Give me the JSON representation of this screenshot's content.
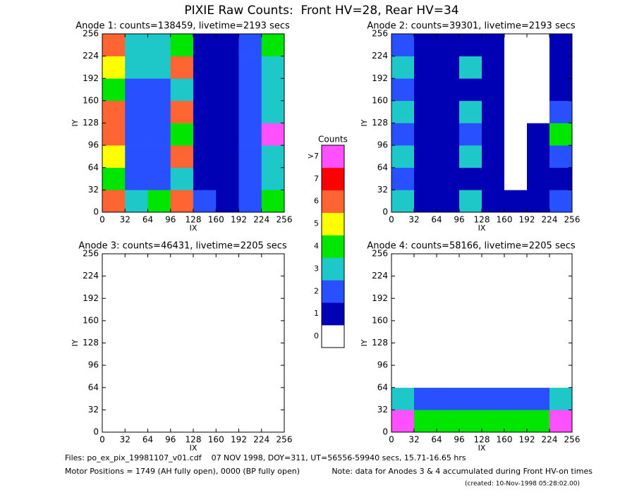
{
  "title": "PIXIE Raw Counts:  Front HV=28, Rear HV=34",
  "chart_data": [
    {
      "type": "heatmap",
      "title": "Anode 1: counts=138459, livetime=2193 secs",
      "xlabel": "IX",
      "ylabel": "IY",
      "xlim": [
        0,
        256
      ],
      "ylim": [
        0,
        256
      ],
      "xticks": [
        0,
        32,
        64,
        96,
        128,
        160,
        192,
        224,
        256
      ],
      "yticks": [
        0,
        32,
        64,
        96,
        128,
        160,
        192,
        224,
        256
      ],
      "z": [
        [
          6,
          3,
          4,
          6,
          2,
          1,
          2,
          4
        ],
        [
          4,
          2,
          2,
          3,
          1,
          1,
          2,
          3
        ],
        [
          5,
          2,
          2,
          6,
          1,
          1,
          2,
          3
        ],
        [
          6,
          2,
          2,
          4,
          1,
          1,
          2,
          8
        ],
        [
          6,
          2,
          2,
          6,
          1,
          1,
          2,
          3
        ],
        [
          4,
          2,
          2,
          3,
          1,
          1,
          2,
          3
        ],
        [
          5,
          3,
          3,
          6,
          1,
          1,
          2,
          3
        ],
        [
          6,
          3,
          3,
          4,
          1,
          1,
          2,
          4
        ]
      ]
    },
    {
      "type": "heatmap",
      "title": "Anode 2: counts=39301, livetime=2193 secs",
      "xlabel": "IX",
      "ylabel": "IY",
      "xlim": [
        0,
        256
      ],
      "ylim": [
        0,
        256
      ],
      "xticks": [
        0,
        32,
        64,
        96,
        128,
        160,
        192,
        224,
        256
      ],
      "yticks": [
        0,
        32,
        64,
        96,
        128,
        160,
        192,
        224,
        256
      ],
      "z": [
        [
          3,
          1,
          1,
          3,
          1,
          1,
          1,
          2
        ],
        [
          2,
          1,
          1,
          1,
          1,
          0,
          1,
          1
        ],
        [
          3,
          1,
          1,
          3,
          1,
          0,
          1,
          2
        ],
        [
          2,
          1,
          1,
          2,
          1,
          0,
          1,
          4
        ],
        [
          3,
          1,
          1,
          3,
          1,
          0,
          0,
          2
        ],
        [
          2,
          1,
          1,
          1,
          1,
          0,
          0,
          1
        ],
        [
          3,
          1,
          1,
          3,
          1,
          0,
          0,
          1
        ],
        [
          2,
          1,
          1,
          1,
          1,
          0,
          0,
          1
        ]
      ]
    },
    {
      "type": "heatmap",
      "title": "Anode 3: counts=46431, livetime=2205 secs",
      "xlabel": "IX",
      "ylabel": "IY",
      "xlim": [
        0,
        256
      ],
      "ylim": [
        0,
        256
      ],
      "xticks": [
        0,
        32,
        64,
        96,
        128,
        160,
        192,
        224,
        256
      ],
      "yticks": [
        0,
        32,
        64,
        96,
        128,
        160,
        192,
        224,
        256
      ],
      "z": [
        [
          0,
          0,
          0,
          0,
          0,
          0,
          0,
          0
        ],
        [
          0,
          0,
          0,
          0,
          0,
          0,
          0,
          0
        ],
        [
          0,
          0,
          0,
          0,
          0,
          0,
          0,
          0
        ],
        [
          0,
          0,
          0,
          0,
          0,
          0,
          0,
          0
        ],
        [
          0,
          0,
          0,
          0,
          0,
          0,
          0,
          0
        ],
        [
          0,
          0,
          0,
          0,
          0,
          0,
          0,
          0
        ],
        [
          0,
          0,
          0,
          0,
          0,
          0,
          0,
          0
        ],
        [
          0,
          0,
          0,
          0,
          0,
          0,
          0,
          0
        ]
      ]
    },
    {
      "type": "heatmap",
      "title": "Anode 4: counts=58166, livetime=2205 secs",
      "xlabel": "IX",
      "ylabel": "IY",
      "xlim": [
        0,
        256
      ],
      "ylim": [
        0,
        256
      ],
      "xticks": [
        0,
        32,
        64,
        96,
        128,
        160,
        192,
        224,
        256
      ],
      "yticks": [
        0,
        32,
        64,
        96,
        128,
        160,
        192,
        224,
        256
      ],
      "z": [
        [
          8,
          4,
          4,
          4,
          4,
          4,
          4,
          8
        ],
        [
          3,
          2,
          2,
          2,
          2,
          2,
          2,
          3
        ],
        [
          0,
          0,
          0,
          0,
          0,
          0,
          0,
          0
        ],
        [
          0,
          0,
          0,
          0,
          0,
          0,
          0,
          0
        ],
        [
          0,
          0,
          0,
          0,
          0,
          0,
          0,
          0
        ],
        [
          0,
          0,
          0,
          0,
          0,
          0,
          0,
          0
        ],
        [
          0,
          0,
          0,
          0,
          0,
          0,
          0,
          0
        ],
        [
          0,
          0,
          0,
          0,
          0,
          0,
          0,
          0
        ]
      ]
    }
  ],
  "colorbar": {
    "title": "Counts",
    "ticks": [
      0,
      1,
      2,
      3,
      4,
      5,
      6,
      7,
      {
        "value": 8,
        "label": ">7"
      }
    ],
    "colors": [
      "#ffffff",
      "#0000b4",
      "#2850ff",
      "#1ec8c8",
      "#00e600",
      "#ffff00",
      "#ff6432",
      "#ff0000",
      "#ff50ff"
    ]
  },
  "footer": {
    "line1": "Files: po_ex_pix_19981107_v01.cdf    07 NOV 1998, DOY=311, UT=56556-59940 secs, 15.71-16.65 hrs",
    "line2": "Motor Positions = 1749 (AH fully open), 0000 (BP fully open)",
    "note": "Note: data for Anodes 3 & 4 accumulated during Front HV-on times",
    "created": "(created: 10-Nov-1998 05:28:02.00)"
  }
}
